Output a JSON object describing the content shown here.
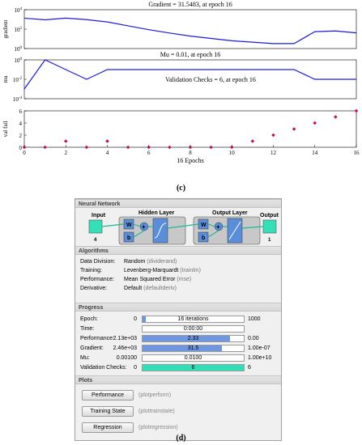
{
  "figure": {
    "caption_c": "(c)",
    "caption_d": "(d)"
  },
  "chart_data": [
    {
      "type": "line",
      "title": "Gradient = 31.5483, at epoch 16",
      "ylabel": "gradient",
      "yscale": "log",
      "yticks": [
        "10^4",
        "10^2",
        "10^0"
      ],
      "ylim": [
        0.3,
        30000
      ],
      "xlim": [
        0,
        16
      ],
      "series": [
        {
          "x": [
            0,
            1,
            2,
            3,
            4,
            5,
            6,
            7,
            8,
            9,
            10,
            11,
            12,
            13,
            14,
            15,
            16
          ],
          "values": [
            2460,
            1500,
            2500,
            1600,
            800,
            250,
            80,
            30,
            12,
            6,
            3,
            2,
            1.3,
            1.3,
            45,
            55,
            31.5
          ]
        }
      ]
    },
    {
      "type": "line",
      "title": "Mu = 0.01, at epoch 16",
      "annotation": "Validation Checks = 6, at epoch 16",
      "ylabel": "mu",
      "yscale": "log",
      "yticks": [
        "10^0",
        "10^-2",
        "10^-4"
      ],
      "ylim": [
        0.0001,
        1
      ],
      "xlim": [
        0,
        16
      ],
      "series": [
        {
          "x": [
            0,
            1,
            2,
            3,
            4,
            5,
            6,
            7,
            8,
            9,
            10,
            11,
            12,
            13,
            14,
            15,
            16
          ],
          "values": [
            0.001,
            1,
            0.1,
            0.01,
            0.1,
            0.1,
            0.1,
            0.1,
            0.1,
            0.1,
            0.1,
            0.1,
            0.1,
            0.1,
            0.01,
            0.01,
            0.01
          ]
        }
      ]
    },
    {
      "type": "scatter",
      "ylabel": "val fail",
      "xlabel": "16 Epochs",
      "xlim": [
        0,
        16
      ],
      "ylim": [
        0,
        6
      ],
      "yticks": [
        "6",
        "4",
        "2",
        "0"
      ],
      "xticks": [
        "0",
        "2",
        "4",
        "6",
        "8",
        "10",
        "12",
        "14",
        "16"
      ],
      "series": [
        {
          "x": [
            0,
            1,
            2,
            3,
            4,
            5,
            6,
            7,
            8,
            9,
            10,
            11,
            12,
            13,
            14,
            15,
            16
          ],
          "values": [
            0,
            0,
            1,
            0,
            1,
            0,
            0,
            0,
            0,
            0,
            0,
            1,
            2,
            3,
            4,
            5,
            6
          ]
        }
      ]
    }
  ],
  "nn": {
    "section_network": "Neural Network",
    "input_label": "Input",
    "input_count": "4",
    "hidden_label": "Hidden Layer",
    "hidden_count": "10",
    "output_layer_label": "Output Layer",
    "output_layer_count": "1",
    "output_label": "Output",
    "output_count": "1",
    "w": "W",
    "b": "b",
    "plus": "+",
    "section_algorithms": "Algorithms",
    "algorithms": [
      {
        "key": "Data Division:",
        "value": "Random",
        "hint": "(dividerand)"
      },
      {
        "key": "Training:",
        "value": "Levenberg-Marquardt",
        "hint": "(trainlm)"
      },
      {
        "key": "Performance:",
        "value": "Mean Squared Error",
        "hint": "(mse)"
      },
      {
        "key": "Derivative:",
        "value": "Default",
        "hint": "(defaultderiv)"
      }
    ],
    "section_progress": "Progress",
    "progress": [
      {
        "key": "Epoch:",
        "min": "0",
        "bar": "16 iterations",
        "max": "1000",
        "fill": 0.03,
        "green": false
      },
      {
        "key": "Time:",
        "min": "",
        "bar": "0:00:00",
        "max": "",
        "fill": 0,
        "green": false
      },
      {
        "key": "Performance:",
        "min": "2.13e+03",
        "bar": "2.33",
        "max": "0.00",
        "fill": 0.86,
        "green": false
      },
      {
        "key": "Gradient:",
        "min": "2.46e+03",
        "bar": "31.5",
        "max": "1.00e-07",
        "fill": 0.78,
        "green": false
      },
      {
        "key": "Mu:",
        "min": "0.00100",
        "bar": "0.0100",
        "max": "1.00e+10",
        "fill": 0,
        "green": false
      },
      {
        "key": "Validation Checks:",
        "min": "0",
        "bar": "6",
        "max": "6",
        "fill": 1,
        "green": true
      }
    ],
    "section_plots": "Plots",
    "plots": [
      {
        "label": "Performance",
        "hint": "(plotperform)"
      },
      {
        "label": "Training State",
        "hint": "(plottrainstate)"
      },
      {
        "label": "Regression",
        "hint": "(plotregression)"
      }
    ],
    "colors": {
      "node": "#33e0b8",
      "layer_bg": "#c8c8c8",
      "block": "#5a8edb",
      "bar": "#6f96e1",
      "green_bar": "#2fe0b6"
    }
  }
}
